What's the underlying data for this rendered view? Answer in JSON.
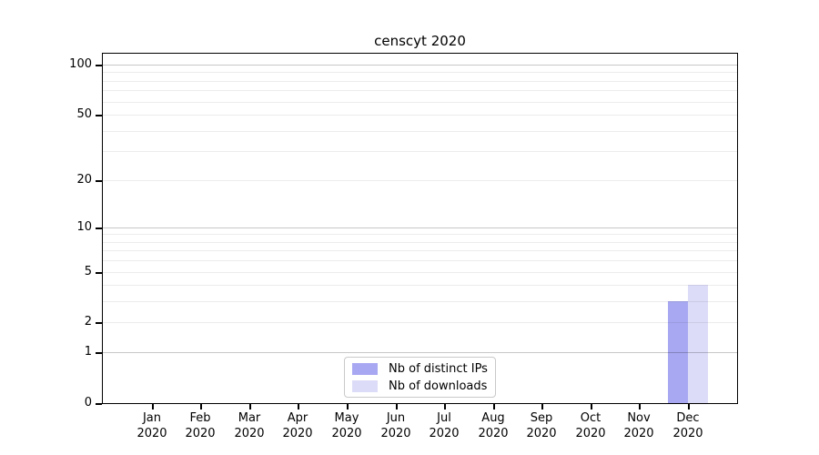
{
  "chart_data": {
    "type": "bar",
    "title": "censcyt 2020",
    "categories": [
      {
        "month": "Jan",
        "year": "2020"
      },
      {
        "month": "Feb",
        "year": "2020"
      },
      {
        "month": "Mar",
        "year": "2020"
      },
      {
        "month": "Apr",
        "year": "2020"
      },
      {
        "month": "May",
        "year": "2020"
      },
      {
        "month": "Jun",
        "year": "2020"
      },
      {
        "month": "Jul",
        "year": "2020"
      },
      {
        "month": "Aug",
        "year": "2020"
      },
      {
        "month": "Sep",
        "year": "2020"
      },
      {
        "month": "Oct",
        "year": "2020"
      },
      {
        "month": "Nov",
        "year": "2020"
      },
      {
        "month": "Dec",
        "year": "2020"
      }
    ],
    "series": [
      {
        "name": "Nb of distinct IPs",
        "color": "#a8a8f2",
        "values": [
          0,
          0,
          0,
          0,
          0,
          0,
          0,
          0,
          0,
          0,
          0,
          3
        ]
      },
      {
        "name": "Nb of downloads",
        "color": "#dcdcf9",
        "values": [
          0,
          0,
          0,
          0,
          0,
          0,
          0,
          0,
          0,
          0,
          0,
          4
        ]
      }
    ],
    "y_axis": {
      "scale": "log10(1+value)",
      "tick_labels": [
        0,
        1,
        2,
        5,
        10,
        20,
        50,
        100
      ],
      "major_gridlines": [
        1,
        10,
        100
      ],
      "minor_gridlines": [
        2,
        3,
        4,
        5,
        6,
        7,
        8,
        9,
        20,
        30,
        40,
        50,
        60,
        70,
        80,
        90
      ],
      "ylim": [
        0,
        116
      ]
    },
    "legend_position": "inside-bottom-center",
    "grid": true
  }
}
